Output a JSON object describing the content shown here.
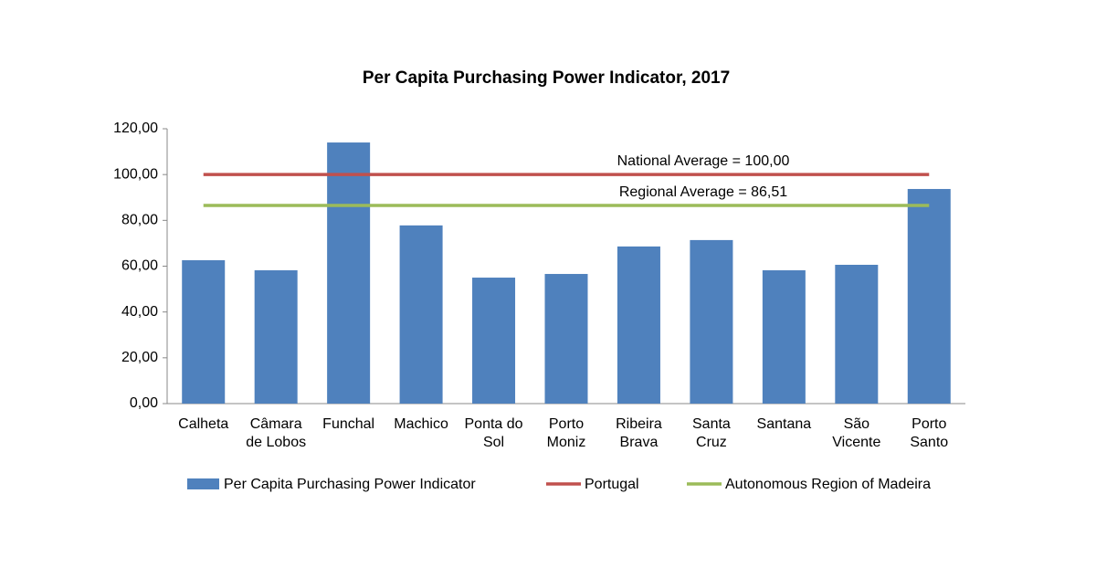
{
  "chart_data": {
    "type": "bar",
    "title": "Per Capita Purchasing Power Indicator, 2017",
    "categories": [
      [
        "Calheta"
      ],
      [
        "Câmara",
        "de Lobos"
      ],
      [
        "Funchal"
      ],
      [
        "Machico"
      ],
      [
        "Ponta do",
        "Sol"
      ],
      [
        "Porto",
        "Moniz"
      ],
      [
        "Ribeira",
        "Brava"
      ],
      [
        "Santa",
        "Cruz"
      ],
      [
        "Santana"
      ],
      [
        "São",
        "Vicente"
      ],
      [
        "Porto",
        "Santo"
      ]
    ],
    "series": [
      {
        "name": "Per Capita Purchasing Power Indicator",
        "type": "bar",
        "color": "#4f81bd",
        "values": [
          62.6,
          58.2,
          114.0,
          77.8,
          55.0,
          56.6,
          68.6,
          71.4,
          58.2,
          60.6,
          93.7
        ]
      },
      {
        "name": "Portugal",
        "type": "line",
        "color": "#c0504d",
        "values": [
          100,
          100,
          100,
          100,
          100,
          100,
          100,
          100,
          100,
          100,
          100
        ]
      },
      {
        "name": "Autonomous Region of Madeira",
        "type": "line",
        "color": "#9bbb59",
        "values": [
          86.51,
          86.51,
          86.51,
          86.51,
          86.51,
          86.51,
          86.51,
          86.51,
          86.51,
          86.51,
          86.51
        ]
      }
    ],
    "annotations": [
      "National Average = 100,00",
      "Regional Average = 86,51"
    ],
    "ylim": [
      0,
      120
    ],
    "yticks": [
      {
        "value": 0,
        "label": "0,00"
      },
      {
        "value": 20,
        "label": "20,00"
      },
      {
        "value": 40,
        "label": "40,00"
      },
      {
        "value": 60,
        "label": "60,00"
      },
      {
        "value": 80,
        "label": "80,00"
      },
      {
        "value": 100,
        "label": "100,00"
      },
      {
        "value": 120,
        "label": "120,00"
      }
    ],
    "grid": false,
    "legend": "bottom"
  }
}
